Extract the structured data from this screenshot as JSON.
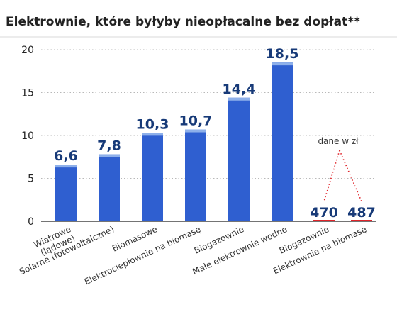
{
  "chart_data": {
    "type": "bar",
    "title": "Elektrownie, które byłyby nieopłacalne bez dopłat**",
    "xlabel": "",
    "ylabel": "",
    "ylim": [
      0,
      20
    ],
    "yticks": [
      0,
      5,
      10,
      15,
      20
    ],
    "grid": true,
    "categories": [
      "Wiatrowe (lądowe)",
      "Solarne (fotowoltaiczne)",
      "Biomasowe",
      "Elektrociepłownie na biomasę",
      "Biogazownie",
      "Małe elektrownie wodne"
    ],
    "values": [
      6.6,
      7.8,
      10.3,
      10.7,
      14.4,
      18.5
    ],
    "value_labels": [
      "6,6",
      "7,8",
      "10,3",
      "10,7",
      "14,4",
      "18,5"
    ],
    "separate_group": {
      "note": "dane w zł",
      "categories": [
        "Biogazownie",
        "Elektrownie na biomasę"
      ],
      "values": [
        470,
        487
      ],
      "value_labels": [
        "470",
        "487"
      ]
    },
    "colors": {
      "bar": "#2f5fd0",
      "bar_top": "#8eb0ea",
      "accent_red": "#e0242a",
      "value_label": "#173a78"
    }
  }
}
